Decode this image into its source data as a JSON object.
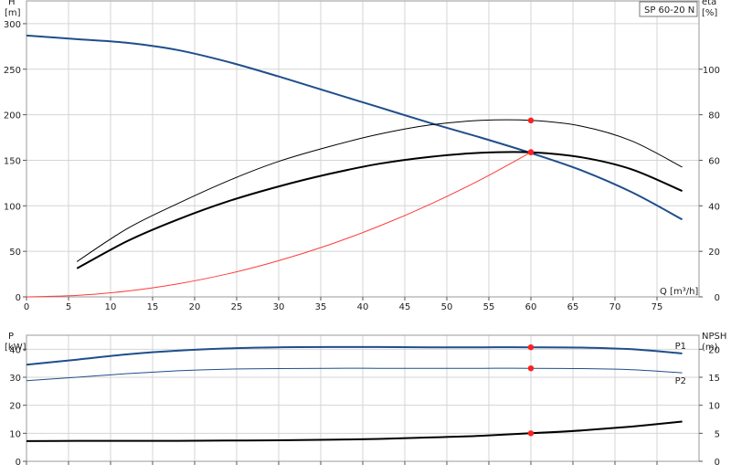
{
  "model": "SP 60-20 N",
  "colors": {
    "head": "#1f4e8c",
    "efficiency": "#000000",
    "system": "#ff3b3b",
    "operating_point": "#ff2020",
    "power": "#1f4e8c",
    "npsh": "#000000"
  },
  "chart_data": [
    {
      "type": "line",
      "panel": "head-efficiency",
      "xlabel": "Q [m³/h]",
      "xlim": [
        0,
        80
      ],
      "x_ticks": [
        0,
        5,
        10,
        15,
        20,
        25,
        30,
        35,
        40,
        45,
        50,
        55,
        60,
        65,
        70,
        75
      ],
      "y_left": {
        "label_line1": "H",
        "label_line2": "[m]",
        "lim": [
          0,
          325
        ],
        "ticks": [
          0,
          50,
          100,
          150,
          200,
          250,
          300
        ]
      },
      "y_right": {
        "label_line1": "eta",
        "label_line2": "[%]",
        "lim": [
          0,
          130
        ],
        "ticks": [
          0,
          20,
          40,
          60,
          80,
          100
        ]
      },
      "grid": true,
      "series": [
        {
          "role": "head",
          "axis": "left",
          "color": "#1f4e8c",
          "width": 2,
          "x": [
            0,
            6,
            12,
            18,
            24,
            30,
            36,
            42,
            48,
            54,
            60,
            66,
            72,
            78
          ],
          "y": [
            287,
            283,
            279,
            271,
            258,
            242,
            225,
            208,
            191,
            175,
            158,
            139,
            115,
            85
          ]
        },
        {
          "role": "efficiency",
          "axis": "right",
          "color": "#000000",
          "width": 1,
          "x": [
            6,
            12,
            18,
            24,
            30,
            36,
            42,
            48,
            54,
            60,
            66,
            72,
            78
          ],
          "y": [
            15.5,
            30,
            41,
            51,
            59.5,
            66,
            71.5,
            75.5,
            77.5,
            77.5,
            75,
            68.5,
            57
          ]
        },
        {
          "role": "efficiency-total",
          "axis": "right",
          "color": "#000000",
          "width": 2,
          "x": [
            6,
            12,
            18,
            24,
            30,
            36,
            42,
            48,
            54,
            60,
            66,
            72,
            78
          ],
          "y": [
            12.5,
            24.5,
            34,
            42,
            48.5,
            54,
            58.5,
            61.5,
            63.3,
            63.5,
            61.3,
            56,
            46.5
          ]
        },
        {
          "role": "system-curve",
          "axis": "left",
          "color": "#ff3b3b",
          "width": 1,
          "x": [
            0,
            6,
            12,
            18,
            24,
            30,
            36,
            42,
            48,
            54,
            60
          ],
          "y": [
            0,
            1.6,
            6.4,
            14.3,
            25.4,
            39.7,
            57.2,
            77.8,
            101.6,
            128.6,
            158.8
          ]
        }
      ],
      "points": [
        {
          "role": "duty-point-head",
          "axis": "left",
          "x": 60,
          "y": 159
        },
        {
          "role": "duty-point-eta",
          "axis": "right",
          "x": 60,
          "y": 77.5
        },
        {
          "role": "duty-point-eta-total",
          "axis": "right",
          "x": 60,
          "y": 63.5
        }
      ]
    },
    {
      "type": "line",
      "panel": "power-npsh",
      "xlim": [
        0,
        80
      ],
      "x_ticks": [
        0,
        5,
        10,
        15,
        20,
        25,
        30,
        35,
        40,
        45,
        50,
        55,
        60,
        65,
        70,
        75
      ],
      "y_left": {
        "label_line1": "P",
        "label_line2": "[kW]",
        "lim": [
          0,
          45
        ],
        "ticks": [
          0,
          10,
          20,
          30,
          40
        ]
      },
      "y_right": {
        "label_line1": "NPSH",
        "label_line2": "(m)",
        "lim": [
          0,
          22.5
        ],
        "ticks": [
          0,
          5,
          10,
          15,
          20
        ]
      },
      "grid": true,
      "series": [
        {
          "name": "P1",
          "axis": "left",
          "color": "#1f4e8c",
          "width": 2,
          "x": [
            0,
            6,
            12,
            18,
            24,
            30,
            36,
            42,
            48,
            54,
            60,
            66,
            72,
            78
          ],
          "y": [
            34.5,
            36.3,
            38.2,
            39.5,
            40.3,
            40.7,
            40.8,
            40.8,
            40.7,
            40.7,
            40.7,
            40.6,
            40.0,
            38.5
          ]
        },
        {
          "name": "P2",
          "axis": "left",
          "color": "#1f4e8c",
          "width": 1,
          "x": [
            0,
            6,
            12,
            18,
            24,
            30,
            36,
            42,
            48,
            54,
            60,
            66,
            72,
            78
          ],
          "y": [
            28.8,
            30.0,
            31.3,
            32.3,
            32.9,
            33.1,
            33.2,
            33.2,
            33.2,
            33.2,
            33.2,
            33.1,
            32.7,
            31.6
          ]
        },
        {
          "role": "npsh",
          "axis": "right",
          "color": "#000000",
          "width": 2,
          "x": [
            0,
            6,
            12,
            18,
            24,
            30,
            36,
            42,
            48,
            54,
            60,
            66,
            72,
            78
          ],
          "y": [
            3.6,
            3.65,
            3.65,
            3.65,
            3.7,
            3.75,
            3.85,
            4.0,
            4.25,
            4.55,
            5.0,
            5.5,
            6.2,
            7.1
          ]
        }
      ],
      "points": [
        {
          "role": "duty-point-p1",
          "axis": "left",
          "x": 60,
          "y": 40.7
        },
        {
          "role": "duty-point-p2",
          "axis": "left",
          "x": 60,
          "y": 33.2
        },
        {
          "role": "duty-point-npsh",
          "axis": "right",
          "x": 60,
          "y": 5.0
        }
      ]
    }
  ]
}
